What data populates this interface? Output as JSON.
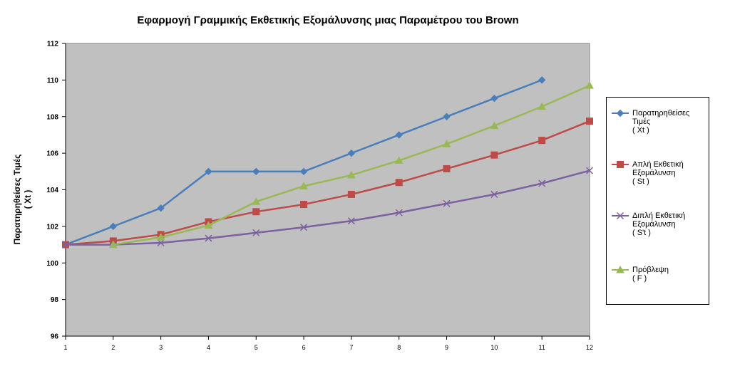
{
  "chart_data": {
    "type": "line",
    "title": "Εφαρμογή Γραμμικής Εκθετικής Εξομάλυνσης μιας Παραμέτρου του Brown",
    "ylabel_lines": [
      "Παρατηρηθείσες Τιμές",
      "( Xt )"
    ],
    "xlabel": "",
    "categories": [
      "1",
      "2",
      "3",
      "4",
      "5",
      "6",
      "7",
      "8",
      "9",
      "10",
      "11",
      "12"
    ],
    "ylim": [
      96,
      112
    ],
    "yticks": [
      "96",
      "98",
      "100",
      "102",
      "104",
      "106",
      "108",
      "110",
      "112"
    ],
    "grid": false,
    "legend_position": "right",
    "plot_background": "#c0c0c0",
    "series": [
      {
        "name": "Παρατηρηθείσες Τιμές ( Xt )",
        "legend_lines": [
          "Παρατηρηθείσες",
          "Τιμές",
          "( Xt )"
        ],
        "color": "#4a7ebb",
        "marker": "diamond",
        "values": [
          101,
          102,
          103,
          105,
          105,
          105,
          106,
          107,
          108,
          109,
          110,
          null
        ]
      },
      {
        "name": "Απλή Εκθετική Εξομάλυνση ( St )",
        "legend_lines": [
          "Απλή Εκθετική",
          "Εξομάλυνση",
          "( St )"
        ],
        "color": "#be4b48",
        "marker": "square",
        "values": [
          101,
          101.2,
          101.55,
          102.25,
          102.8,
          103.2,
          103.75,
          104.4,
          105.15,
          105.9,
          106.7,
          107.75
        ]
      },
      {
        "name": "Διπλή Εκθετική Εξομάλυνση ( S't )",
        "legend_lines": [
          "Διπλή Εκθετική",
          "Εξομάλυνση",
          "( S't )"
        ],
        "color": "#7d60a0",
        "marker": "x",
        "values": [
          101,
          101.0,
          101.1,
          101.35,
          101.65,
          101.95,
          102.3,
          102.75,
          103.25,
          103.75,
          104.35,
          105.05
        ]
      },
      {
        "name": "Πρόβλεψη ( F )",
        "legend_lines": [
          "Πρόβλεψη",
          "( F )"
        ],
        "color": "#98b954",
        "marker": "triangle",
        "values": [
          null,
          101.0,
          101.4,
          102.05,
          103.35,
          104.2,
          104.8,
          105.6,
          106.5,
          107.5,
          108.55,
          109.7
        ]
      }
    ]
  }
}
